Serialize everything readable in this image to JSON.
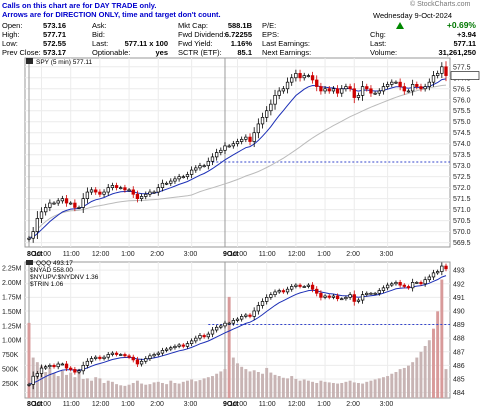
{
  "notes": {
    "line1": "Calls on this chart are for DAY TRADE only.",
    "line2": "Arrows are for DIRECTION ONLY, time and target don't count."
  },
  "watermark": "© StockCharts.com",
  "date": "Wednesday  9-Oct-2024",
  "quote": {
    "open_label": "Open:",
    "open": "573.16",
    "high_label": "High:",
    "high": "577.71",
    "low_label": "Low:",
    "low": "572.55",
    "prevclose_label": "Prev Close:",
    "prevclose": "573.17",
    "ask_label": "Ask:",
    "ask": "",
    "bid_label": "Bid:",
    "bid": "",
    "last_label": "Last:",
    "last": "577.11 x 100",
    "optionable_label": "Optionable:",
    "optionable": "yes",
    "mktcap_label": "Mkt Cap:",
    "mktcap": "588.1B",
    "fwddiv_label": "Fwd Dividend:",
    "fwddiv": "6.72255",
    "fwdyield_label": "Fwd Yield:",
    "fwdyield": "1.16%",
    "sctr_label": "SCTR (ETF):",
    "sctr": "85.1",
    "pe_label": "P/E:",
    "pe": "",
    "eps_label": "EPS:",
    "eps": "",
    "lastearn_label": "Last Earnings:",
    "lastearn": "",
    "nextearn_label": "Next Earnings:",
    "nextearn": "",
    "chg_label": "Chg:",
    "chg_pct": "+0.69%",
    "chg": "+3.94",
    "last2_label": "Last:",
    "last2": "577.11",
    "volume_label": "Volume:",
    "volume": "31,261,250"
  },
  "colors": {
    "up": "#000000",
    "down": "#cc0000",
    "ma": "#1c2fb6",
    "ma_slow": "#bbbbbb",
    "prevclose": "#3344cc",
    "vol_bar": "#c8b4b4",
    "vol_bar_hi": "#d89a9a",
    "chg": "#007700",
    "note": "#0000cc"
  },
  "chart_data": [
    {
      "type": "line",
      "legend": "SPY (5 min) 577.11",
      "ylim": [
        569.3,
        577.9
      ],
      "y_ticks": [
        "569.5",
        "570.0",
        "570.5",
        "571.0",
        "571.5",
        "572.0",
        "572.5",
        "573.0",
        "573.5",
        "574.0",
        "574.5",
        "575.0",
        "575.5",
        "576.0",
        "576.5",
        "577.0",
        "577.5"
      ],
      "x_ticks": [
        "8Oct",
        "10:00",
        "11:00",
        "12:00",
        "1:00",
        "2:00",
        "3:00",
        "9Oct",
        "10:00",
        "11:00",
        "12:00",
        "1:00",
        "2:00",
        "3:00"
      ],
      "prev_close": 573.17,
      "close": [
        569.7,
        570.0,
        570.6,
        570.9,
        571.1,
        571.3,
        571.3,
        571.4,
        571.5,
        571.3,
        571.3,
        571.1,
        571.1,
        571.5,
        571.8,
        571.9,
        571.8,
        571.7,
        571.8,
        572.0,
        572.1,
        572.0,
        572.0,
        571.9,
        571.9,
        571.7,
        571.5,
        571.6,
        571.7,
        571.8,
        571.8,
        572.0,
        572.2,
        572.2,
        572.3,
        572.4,
        572.5,
        572.5,
        572.6,
        572.8,
        572.9,
        573.0,
        573.0,
        573.2,
        573.4,
        573.6,
        573.7,
        573.9,
        573.9,
        574.0,
        574.1,
        574.2,
        574.3,
        574.1,
        574.5,
        574.9,
        575.2,
        575.5,
        575.8,
        576.2,
        576.4,
        576.5,
        576.8,
        577.0,
        577.2,
        577.0,
        577.1,
        577.1,
        576.9,
        576.6,
        576.4,
        576.5,
        576.4,
        576.5,
        576.3,
        576.5,
        576.6,
        576.5,
        576.1,
        576.2,
        576.6,
        576.5,
        576.3,
        576.3,
        576.4,
        576.6,
        576.7,
        576.8,
        576.8,
        576.6,
        576.4,
        576.4,
        576.7,
        576.6,
        576.5,
        576.6,
        576.8,
        577.1,
        577.2,
        577.5,
        577.1
      ]
    },
    {
      "type": "line",
      "legend": "QQQ 493.17",
      "sub_legends": [
        "$NYAD 558.00",
        "$NYUPV:$NYDNV 1.36",
        "$TRIN 1.06"
      ],
      "ylim": [
        483.6,
        493.6
      ],
      "y_ticks": [
        "484",
        "485",
        "486",
        "487",
        "488",
        "489",
        "490",
        "491",
        "492",
        "493"
      ],
      "prev_close": 489.0,
      "close": [
        484.6,
        485.2,
        485.4,
        485.8,
        485.9,
        486.0,
        485.9,
        486.1,
        486.1,
        485.8,
        485.7,
        485.5,
        485.6,
        486.0,
        486.3,
        486.5,
        486.6,
        486.5,
        486.6,
        486.8,
        486.9,
        486.8,
        486.8,
        486.7,
        486.6,
        486.4,
        486.1,
        486.3,
        486.5,
        486.7,
        486.8,
        486.9,
        487.1,
        487.2,
        487.3,
        487.4,
        487.5,
        487.4,
        487.6,
        487.8,
        488.0,
        488.2,
        488.1,
        488.3,
        488.6,
        488.8,
        488.9,
        489.1,
        489.1,
        489.3,
        489.4,
        489.6,
        489.7,
        489.6,
        490.0,
        490.4,
        490.7,
        491.0,
        491.2,
        491.4,
        491.5,
        491.4,
        491.6,
        491.8,
        491.9,
        491.8,
        491.8,
        491.9,
        491.6,
        491.3,
        491.0,
        491.1,
        491.0,
        491.1,
        490.9,
        490.9,
        491.0,
        491.2,
        490.7,
        490.8,
        491.2,
        491.3,
        491.3,
        491.3,
        491.5,
        491.7,
        491.9,
        492.0,
        492.1,
        491.9,
        491.8,
        491.7,
        492.1,
        492.1,
        492.0,
        492.3,
        492.5,
        492.8,
        492.9,
        493.3,
        493.1
      ]
    },
    {
      "type": "bar",
      "series_label": "volume",
      "ylim": [
        0,
        2250000
      ],
      "y_ticks": [
        "250K",
        "500K",
        "750K",
        "1.00M",
        "1.25M",
        "1.50M",
        "1.75M",
        "2.00M",
        "2.25M"
      ],
      "values": [
        1300000,
        700000,
        620000,
        560000,
        450000,
        520000,
        430000,
        380000,
        470000,
        400000,
        440000,
        360000,
        500000,
        330000,
        340000,
        300000,
        360000,
        340000,
        260000,
        300000,
        280000,
        240000,
        220000,
        210000,
        230000,
        260000,
        300000,
        250000,
        230000,
        240000,
        270000,
        280000,
        260000,
        240000,
        300000,
        260000,
        250000,
        280000,
        300000,
        320000,
        290000,
        310000,
        340000,
        360000,
        380000,
        420000,
        460000,
        500000,
        1750000,
        700000,
        600000,
        540000,
        500000,
        460000,
        480000,
        450000,
        420000,
        520000,
        440000,
        400000,
        380000,
        350000,
        340000,
        380000,
        330000,
        300000,
        320000,
        300000,
        280000,
        260000,
        300000,
        280000,
        270000,
        260000,
        250000,
        260000,
        280000,
        300000,
        270000,
        260000,
        250000,
        280000,
        300000,
        320000,
        340000,
        360000,
        380000,
        420000,
        450000,
        500000,
        520000,
        560000,
        620000,
        700000,
        800000,
        900000,
        1000000,
        1200000,
        1500000,
        2050000,
        500000
      ]
    }
  ]
}
